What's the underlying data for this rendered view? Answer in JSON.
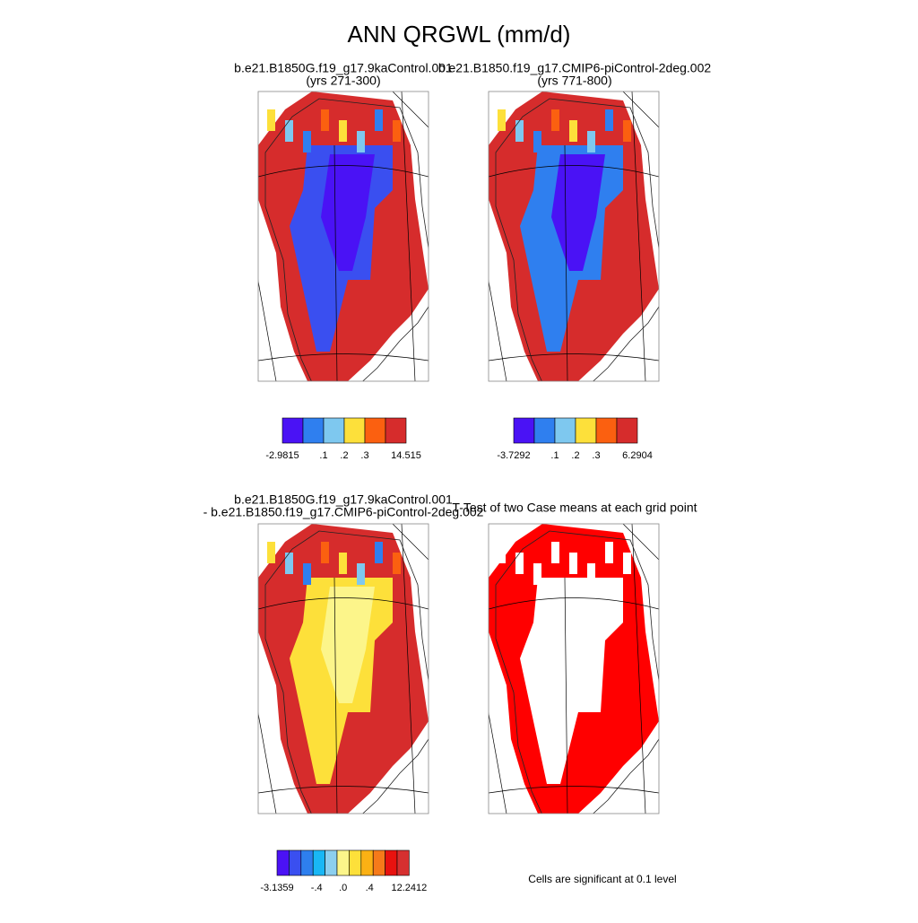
{
  "title": "ANN QRGWL (mm/d)",
  "panels": [
    {
      "title": "b.e21.B1850G.f19_g17.9kaControl.001",
      "subtitle": "(yrs 271-300)",
      "colorbar_labels": [
        "-2.9815",
        ".1",
        ".2",
        ".3",
        "14.515"
      ]
    },
    {
      "title": "b.e21.B1850.f19_g17.CMIP6-piControl-2deg.002",
      "subtitle": "(yrs 771-800)",
      "colorbar_labels": [
        "-3.7292",
        ".1",
        ".2",
        ".3",
        "6.2904"
      ]
    },
    {
      "title": "b.e21.B1850G.f19_g17.9kaControl.001",
      "subtitle": "- b.e21.B1850.f19_g17.CMIP6-piControl-2deg.002",
      "colorbar_labels": [
        "-3.1359",
        "-.4",
        ".0",
        ".4",
        "12.2412"
      ]
    },
    {
      "title": "T-Test of two Case means at each grid point",
      "note": "Cells are significant at 0.1 level"
    }
  ]
}
